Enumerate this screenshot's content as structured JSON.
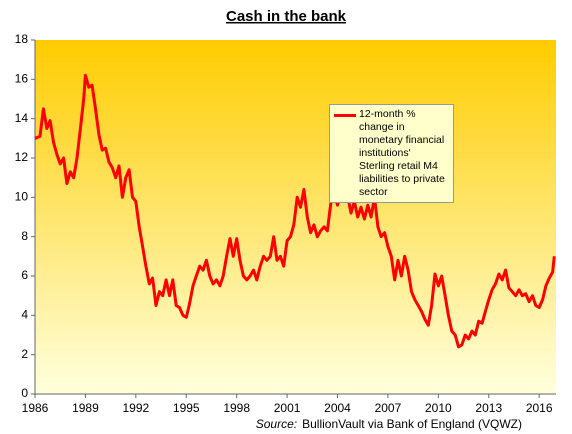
{
  "chart_data": {
    "type": "line",
    "title": "Cash in the bank",
    "source_label": "Source:",
    "source": "BullionVault via Bank of England (VQWZ)",
    "xlim": [
      1986,
      2017
    ],
    "xticks": [
      1986,
      1989,
      1992,
      1995,
      1998,
      2001,
      2004,
      2007,
      2010,
      2013,
      2016
    ],
    "ylim": [
      0,
      18
    ],
    "yticks": [
      0,
      2,
      4,
      6,
      8,
      10,
      12,
      14,
      16,
      18
    ],
    "grid": false,
    "series": [
      {
        "name": "12-month % change in monetary financial institutions' Sterling retail M4 liabilities to private sector",
        "color": "#ff0000",
        "x": [
          1986.0,
          1986.3,
          1986.5,
          1986.7,
          1986.9,
          1987.1,
          1987.3,
          1987.5,
          1987.7,
          1987.9,
          1988.1,
          1988.3,
          1988.5,
          1988.7,
          1988.9,
          1989.0,
          1989.2,
          1989.4,
          1989.6,
          1989.8,
          1990.0,
          1990.2,
          1990.4,
          1990.6,
          1990.8,
          1991.0,
          1991.2,
          1991.4,
          1991.6,
          1991.8,
          1992.0,
          1992.2,
          1992.4,
          1992.6,
          1992.8,
          1993.0,
          1993.2,
          1993.4,
          1993.6,
          1993.8,
          1994.0,
          1994.2,
          1994.4,
          1994.6,
          1994.8,
          1995.0,
          1995.2,
          1995.4,
          1995.6,
          1995.8,
          1996.0,
          1996.2,
          1996.4,
          1996.6,
          1996.8,
          1997.0,
          1997.2,
          1997.4,
          1997.6,
          1997.8,
          1998.0,
          1998.2,
          1998.4,
          1998.6,
          1998.8,
          1999.0,
          1999.2,
          1999.4,
          1999.6,
          1999.8,
          2000.0,
          2000.2,
          2000.4,
          2000.6,
          2000.8,
          2001.0,
          2001.2,
          2001.4,
          2001.6,
          2001.8,
          2002.0,
          2002.2,
          2002.4,
          2002.6,
          2002.8,
          2003.0,
          2003.2,
          2003.4,
          2003.6,
          2003.8,
          2004.0,
          2004.2,
          2004.4,
          2004.6,
          2004.8,
          2005.0,
          2005.2,
          2005.4,
          2005.6,
          2005.8,
          2006.0,
          2006.2,
          2006.4,
          2006.6,
          2006.8,
          2007.0,
          2007.2,
          2007.4,
          2007.6,
          2007.8,
          2008.0,
          2008.2,
          2008.4,
          2008.6,
          2008.8,
          2009.0,
          2009.2,
          2009.4,
          2009.6,
          2009.8,
          2010.0,
          2010.2,
          2010.4,
          2010.6,
          2010.8,
          2011.0,
          2011.2,
          2011.4,
          2011.6,
          2011.8,
          2012.0,
          2012.2,
          2012.4,
          2012.6,
          2012.8,
          2013.0,
          2013.2,
          2013.4,
          2013.6,
          2013.8,
          2014.0,
          2014.2,
          2014.4,
          2014.6,
          2014.8,
          2015.0,
          2015.2,
          2015.4,
          2015.6,
          2015.8,
          2016.0,
          2016.2,
          2016.4,
          2016.6,
          2016.8,
          2016.9
        ],
        "values": [
          13.0,
          13.1,
          14.5,
          13.5,
          13.9,
          12.8,
          12.2,
          11.7,
          12.0,
          10.7,
          11.3,
          11.0,
          12.0,
          13.5,
          15.0,
          16.2,
          15.6,
          15.7,
          14.5,
          13.2,
          12.4,
          12.5,
          11.8,
          11.5,
          11.0,
          11.6,
          10.0,
          11.0,
          11.4,
          10.0,
          9.8,
          8.5,
          7.5,
          6.5,
          5.6,
          5.9,
          4.5,
          5.2,
          5.0,
          5.8,
          5.0,
          5.8,
          4.5,
          4.4,
          4.0,
          3.9,
          4.6,
          5.5,
          6.0,
          6.5,
          6.3,
          6.8,
          6.0,
          5.6,
          5.8,
          5.5,
          6.0,
          7.0,
          7.9,
          7.0,
          7.9,
          6.8,
          6.0,
          5.8,
          6.0,
          6.3,
          5.8,
          6.5,
          7.0,
          6.8,
          7.0,
          8.0,
          6.8,
          7.0,
          6.5,
          7.8,
          8.0,
          8.6,
          10.0,
          9.5,
          10.4,
          9.0,
          8.2,
          8.6,
          8.0,
          8.3,
          8.5,
          8.3,
          9.7,
          10.3,
          9.6,
          10.2,
          9.8,
          10.1,
          9.2,
          9.8,
          9.0,
          9.5,
          8.9,
          9.6,
          9.0,
          10.0,
          8.5,
          8.0,
          8.2,
          7.5,
          7.0,
          5.8,
          6.8,
          6.0,
          7.0,
          6.3,
          5.2,
          4.8,
          4.5,
          4.2,
          3.8,
          3.5,
          4.5,
          6.1,
          5.5,
          6.0,
          5.0,
          4.0,
          3.2,
          3.0,
          2.4,
          2.5,
          3.0,
          2.8,
          3.2,
          3.0,
          3.7,
          3.6,
          4.2,
          4.8,
          5.3,
          5.6,
          6.1,
          5.8,
          6.3,
          5.4,
          5.2,
          5.0,
          5.3,
          5.0,
          5.1,
          4.7,
          5.0,
          4.5,
          4.4,
          4.8,
          5.5,
          5.9,
          6.2,
          7.0
        ]
      }
    ]
  }
}
